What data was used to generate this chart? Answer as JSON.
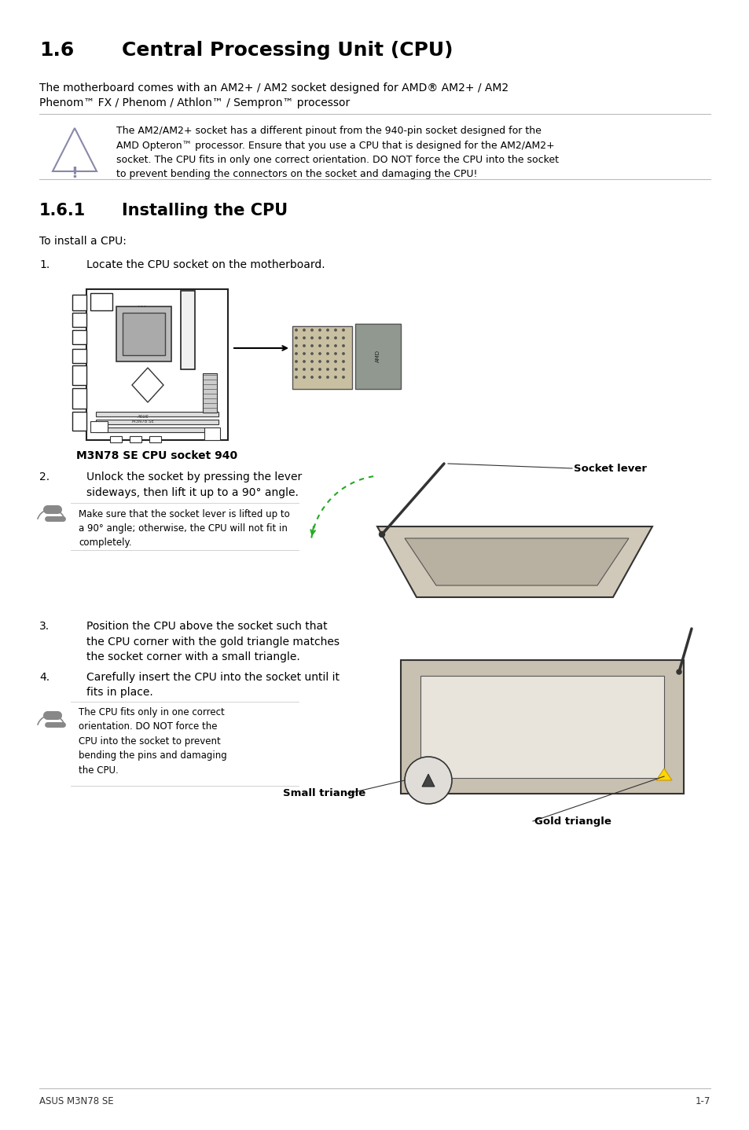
{
  "subtitle": "The motherboard comes with an AM2+ / AM2 socket designed for AMD® AM2+ / AM2\nPhenom™ FX / Phenom / Athlon™ / Sempron™ processor",
  "warning_text": "The AM2/AM2+ socket has a different pinout from the 940-pin socket designed for the\nAMD Opteron™ processor. Ensure that you use a CPU that is designed for the AM2/AM2+\nsocket. The CPU fits in only one correct orientation. DO NOT force the CPU into the socket\nto prevent bending the connectors on the socket and damaging the CPU!",
  "to_install": "To install a CPU:",
  "step1_num": "1.",
  "step1_text": "Locate the CPU socket on the motherboard.",
  "caption1": "M3N78 SE CPU socket 940",
  "step2_num": "2.",
  "step2_text": "Unlock the socket by pressing the lever\nsideways, then lift it up to a 90° angle.",
  "note2": "Make sure that the socket lever is lifted up to\na 90° angle; otherwise, the CPU will not fit in\ncompletely.",
  "socket_lever_label": "Socket lever",
  "step3_num": "3.",
  "step3_text": "Position the CPU above the socket such that\nthe CPU corner with the gold triangle matches\nthe socket corner with a small triangle.",
  "step4_num": "4.",
  "step4_text": "Carefully insert the CPU into the socket until it\nfits in place.",
  "note4": "The CPU fits only in one correct\norientation. DO NOT force the\nCPU into the socket to prevent\nbending the pins and damaging\nthe CPU.",
  "small_triangle_label": "Small triangle",
  "gold_triangle_label": "Gold triangle",
  "footer_left": "ASUS M3N78 SE",
  "footer_right": "1-7",
  "bg_color": "#ffffff",
  "text_color": "#000000"
}
